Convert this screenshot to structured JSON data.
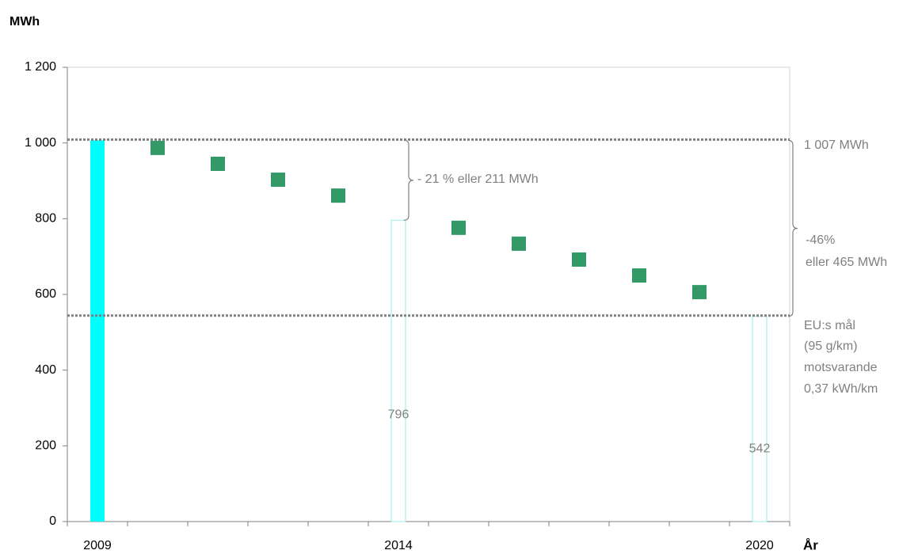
{
  "chart_data": {
    "type": "bar",
    "ylabel": "MWh",
    "xlabel": "År",
    "categories": [
      "2009",
      null,
      null,
      null,
      null,
      "2014",
      null,
      null,
      null,
      null,
      null,
      "2020"
    ],
    "series": [
      {
        "type": "bar",
        "color": "#00ffff",
        "values": [
          1007,
          null,
          null,
          null,
          null,
          null,
          null,
          null,
          null,
          null,
          null,
          null
        ]
      },
      {
        "type": "outline-bar",
        "color": "#99eeee",
        "values": [
          null,
          null,
          null,
          null,
          null,
          796,
          null,
          null,
          null,
          null,
          null,
          542
        ]
      },
      {
        "type": "scatter",
        "color": "#339966",
        "values": [
          null,
          987,
          945,
          903,
          861,
          null,
          776,
          734,
          692,
          650,
          606,
          null
        ]
      }
    ],
    "ylim": [
      0,
      1200
    ],
    "yticks": [
      0,
      200,
      400,
      600,
      800,
      {
        "value": 1000,
        "label": "1 000"
      },
      {
        "value": 1200,
        "label": "1 200"
      }
    ],
    "annotations": [
      "- 21 % eller 211 MWh",
      "1 007 MWh",
      "-46%",
      "eller 465 MWh",
      "EU:s mål",
      "(95 g/km)",
      "motsvarande",
      "0,37 kWh/km"
    ]
  }
}
